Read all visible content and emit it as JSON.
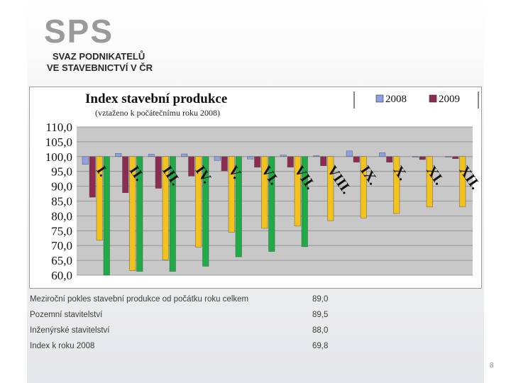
{
  "logo": {
    "letters": "SPS",
    "line1": "SVAZ PODNIKATELŮ",
    "line2": "VE STAVEBNICTVÍ V ČR"
  },
  "chart_data": {
    "type": "bar",
    "title": "Index stavební produkce",
    "subtitle": "(vztaženo k počátečnímu roku 2008)",
    "ylim": [
      60,
      110
    ],
    "yticks": [
      "110,0",
      "105,0",
      "100,0",
      "95,0",
      "90,0",
      "85,0",
      "80,0",
      "75,0",
      "70,0",
      "65,0",
      "60,0"
    ],
    "ytick_values": [
      110,
      105,
      100,
      95,
      90,
      85,
      80,
      75,
      70,
      65,
      60
    ],
    "categories": [
      "I.",
      "II.",
      "III.",
      "IV.",
      "V.",
      "VI.",
      "VII.",
      "VIII.",
      "IX.",
      "X.",
      "XI.",
      "XII."
    ],
    "legend": {
      "position": "top-right"
    },
    "series": [
      {
        "name": "2008",
        "color": "#8f9fe3",
        "values": [
          97.4,
          101.1,
          100.8,
          100.9,
          98.7,
          99.2,
          100.5,
          100.3,
          101.9,
          101.3,
          99.9,
          99.8
        ]
      },
      {
        "name": "2009",
        "color": "#8b2d52",
        "values": [
          86.3,
          87.8,
          89.3,
          93.4,
          95.2,
          96.4,
          96.4,
          96.9,
          98.1,
          98.1,
          99.0,
          99.3
        ]
      },
      {
        "name": "",
        "color": "#f3c21b",
        "values": [
          71.8,
          61.5,
          65.2,
          69.5,
          74.5,
          75.8,
          76.6,
          78.4,
          79.3,
          80.8,
          83.0,
          83.1
        ]
      },
      {
        "name": "",
        "color": "#1fab46",
        "values": [
          60.0,
          61.3,
          61.3,
          63.0,
          66.2,
          68.0,
          69.6,
          null,
          null,
          null,
          null,
          null
        ]
      }
    ]
  },
  "summary": {
    "rows": [
      {
        "label": "Meziroční pokles stavební produkce od počátku roku celkem",
        "value": "89,0"
      },
      {
        "label": "Pozemní stavitelství",
        "value": "89,5"
      },
      {
        "label": "Inženýrské stavitelství",
        "value": "88,0"
      },
      {
        "label": "Index k roku 2008",
        "value": "69,8"
      }
    ]
  },
  "page_number": "8"
}
